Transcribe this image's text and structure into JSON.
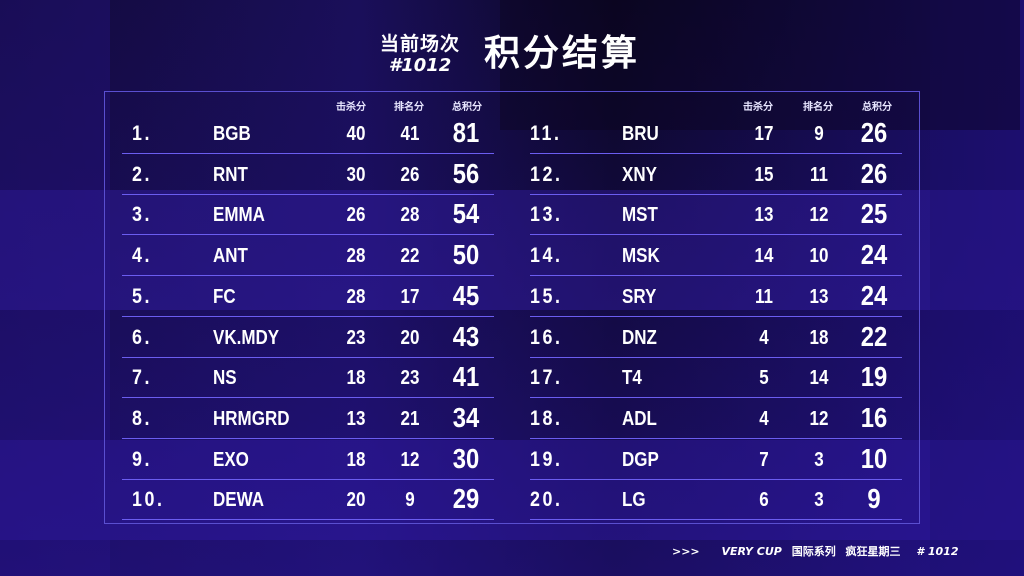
{
  "header": {
    "match_label": "当前场次",
    "match_number": "#1012",
    "title": "积分结算"
  },
  "columns": {
    "kill": "击杀分",
    "placement": "排名分",
    "total": "总积分"
  },
  "left_rows": [
    {
      "rank": "1.",
      "team": "BGB",
      "kill": "40",
      "placement": "41",
      "total": "81"
    },
    {
      "rank": "2.",
      "team": "RNT",
      "kill": "30",
      "placement": "26",
      "total": "56"
    },
    {
      "rank": "3.",
      "team": "EMMA",
      "kill": "26",
      "placement": "28",
      "total": "54"
    },
    {
      "rank": "4.",
      "team": "ANT",
      "kill": "28",
      "placement": "22",
      "total": "50"
    },
    {
      "rank": "5.",
      "team": "FC",
      "kill": "28",
      "placement": "17",
      "total": "45"
    },
    {
      "rank": "6.",
      "team": "VK.MDY",
      "kill": "23",
      "placement": "20",
      "total": "43"
    },
    {
      "rank": "7.",
      "team": "NS",
      "kill": "18",
      "placement": "23",
      "total": "41"
    },
    {
      "rank": "8.",
      "team": "HRMGRD",
      "kill": "13",
      "placement": "21",
      "total": "34"
    },
    {
      "rank": "9.",
      "team": "EXO",
      "kill": "18",
      "placement": "12",
      "total": "30"
    },
    {
      "rank": "10.",
      "team": "DEWA",
      "kill": "20",
      "placement": "9",
      "total": "29"
    }
  ],
  "right_rows": [
    {
      "rank": "11.",
      "team": "BRU",
      "kill": "17",
      "placement": "9",
      "total": "26"
    },
    {
      "rank": "12.",
      "team": "XNY",
      "kill": "15",
      "placement": "11",
      "total": "26"
    },
    {
      "rank": "13.",
      "team": "MST",
      "kill": "13",
      "placement": "12",
      "total": "25"
    },
    {
      "rank": "14.",
      "team": "MSK",
      "kill": "14",
      "placement": "10",
      "total": "24"
    },
    {
      "rank": "15.",
      "team": "SRY",
      "kill": "11",
      "placement": "13",
      "total": "24"
    },
    {
      "rank": "16.",
      "team": "DNZ",
      "kill": "4",
      "placement": "18",
      "total": "22"
    },
    {
      "rank": "17.",
      "team": "T4",
      "kill": "5",
      "placement": "14",
      "total": "19"
    },
    {
      "rank": "18.",
      "team": "ADL",
      "kill": "4",
      "placement": "12",
      "total": "16"
    },
    {
      "rank": "19.",
      "team": "DGP",
      "kill": "7",
      "placement": "3",
      "total": "10"
    },
    {
      "rank": "20.",
      "team": "LG",
      "kill": "6",
      "placement": "3",
      "total": "9"
    }
  ],
  "footer": {
    "arrows": ">>>",
    "brand": "VERY CUP",
    "series": "国际系列",
    "event": "疯狂星期三",
    "match": "# 1012"
  },
  "colors": {
    "accent_line": "#6b5df0",
    "panel_border": "#5a4fd0",
    "background": "#120a3a"
  }
}
